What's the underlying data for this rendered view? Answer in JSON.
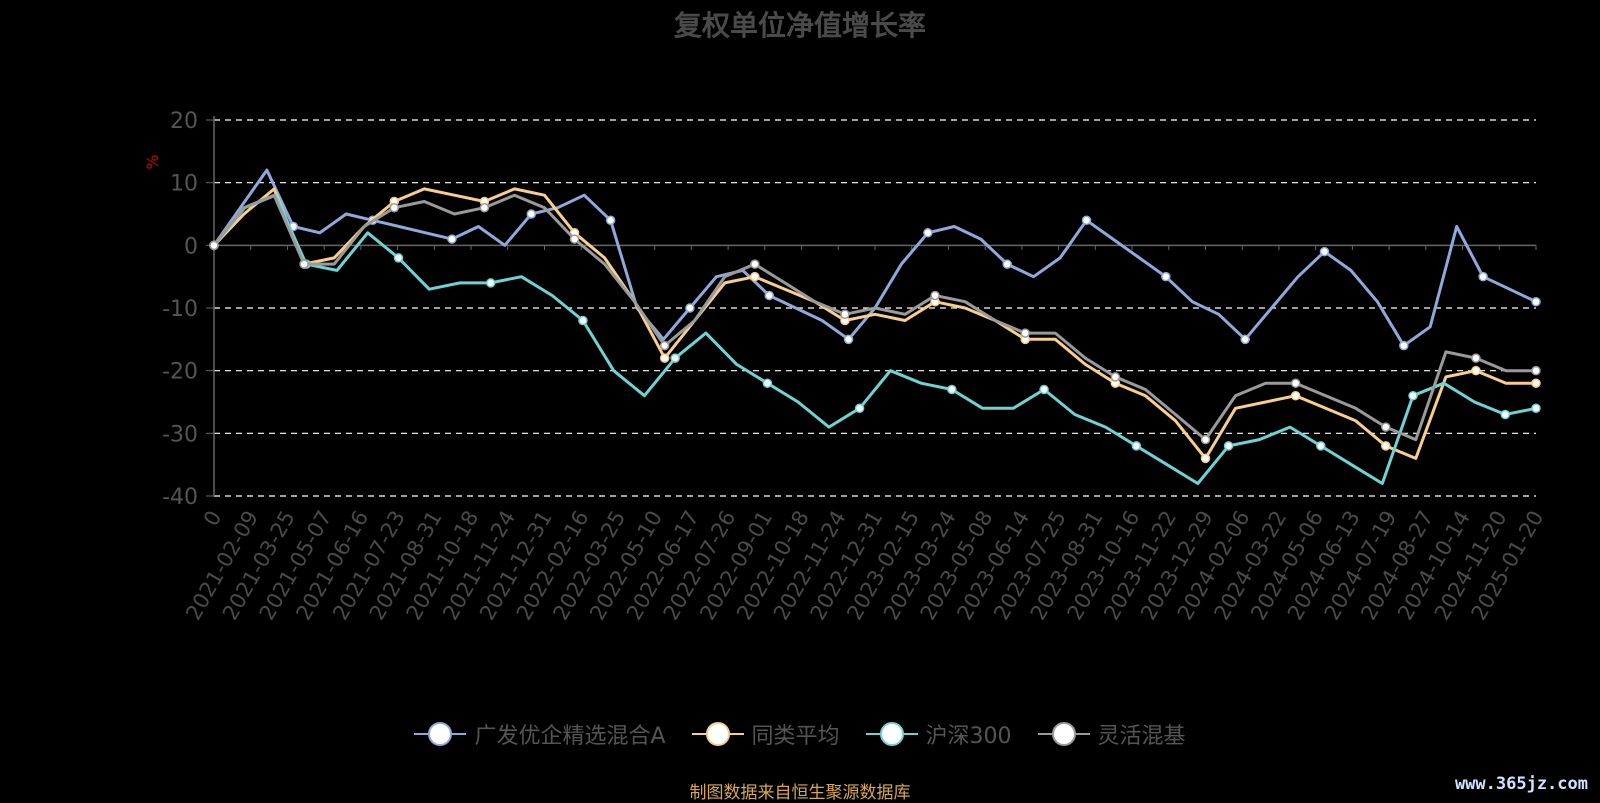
{
  "title": "复权单位净值增长率",
  "footer": "制图数据来自恒生聚源数据库",
  "watermark": "www.365jz.com",
  "chart_data": {
    "type": "line",
    "title": "复权单位净值增长率",
    "ylabel": "%",
    "ylim": [
      -40,
      20
    ],
    "yticks": [
      20,
      10,
      0,
      -10,
      -20,
      -30,
      -40
    ],
    "grid": true,
    "legend_position": "bottom-center",
    "x_tick_labels": [
      "0",
      "2021-02-09",
      "2021-03-25",
      "2021-05-07",
      "2021-06-16",
      "2021-07-23",
      "2021-08-31",
      "2021-10-18",
      "2021-11-24",
      "2021-12-31",
      "2022-02-16",
      "2022-03-25",
      "2022-05-10",
      "2022-06-17",
      "2022-07-26",
      "2022-09-01",
      "2022-10-18",
      "2022-11-24",
      "2022-12-31",
      "2023-02-15",
      "2023-03-24",
      "2023-05-08",
      "2023-06-14",
      "2023-07-25",
      "2023-08-31",
      "2023-10-16",
      "2023-11-22",
      "2023-12-29",
      "2024-02-06",
      "2024-03-22",
      "2024-05-06",
      "2024-06-13",
      "2024-07-19",
      "2024-08-27",
      "2024-10-14",
      "2024-11-20",
      "2025-01-20"
    ],
    "series": [
      {
        "name": "广发优企精选混合A",
        "color": "#8fa9dc",
        "values": [
          0,
          6,
          12,
          3,
          2,
          5,
          4,
          3,
          2,
          1,
          3,
          0,
          5,
          6,
          8,
          4,
          -10,
          -15,
          -10,
          -5,
          -4,
          -8,
          -10,
          -12,
          -15,
          -10,
          -3,
          2,
          3,
          1,
          -3,
          -5,
          -2,
          4,
          1,
          -2,
          -5,
          -9,
          -11,
          -15,
          -10,
          -5,
          -1,
          -4,
          -9,
          -16,
          -13,
          3,
          -5,
          -7,
          -9
        ]
      },
      {
        "name": "同类平均",
        "color": "#f9cd8c",
        "values": [
          0,
          5,
          9,
          -3,
          -2,
          3,
          7,
          9,
          8,
          7,
          9,
          8,
          2,
          -2,
          -9,
          -18,
          -12,
          -6,
          -5,
          -7,
          -9,
          -12,
          -11,
          -12,
          -9,
          -10,
          -12,
          -15,
          -15,
          -19,
          -22,
          -24,
          -28,
          -34,
          -26,
          -25,
          -24,
          -26,
          -28,
          -32,
          -34,
          -21,
          -20,
          -22,
          -22
        ]
      },
      {
        "name": "沪深300",
        "color": "#6ed3d3",
        "values": [
          0,
          6,
          8,
          -3,
          -4,
          2,
          -2,
          -7,
          -6,
          -6,
          -5,
          -8,
          -12,
          -20,
          -24,
          -18,
          -14,
          -19,
          -22,
          -25,
          -29,
          -26,
          -20,
          -22,
          -23,
          -26,
          -26,
          -23,
          -27,
          -29,
          -32,
          -35,
          -38,
          -32,
          -31,
          -29,
          -32,
          -35,
          -38,
          -24,
          -22,
          -25,
          -27,
          -26
        ]
      },
      {
        "name": "灵活混基",
        "color": "#9a9a9a",
        "values": [
          0,
          6,
          8,
          -3,
          -3,
          3,
          6,
          7,
          5,
          6,
          8,
          6,
          1,
          -3,
          -9,
          -16,
          -12,
          -5,
          -3,
          -6,
          -9,
          -11,
          -10,
          -11,
          -8,
          -9,
          -12,
          -14,
          -14,
          -18,
          -21,
          -23,
          -27,
          -31,
          -24,
          -22,
          -22,
          -24,
          -26,
          -29,
          -31,
          -17,
          -18,
          -20,
          -20
        ]
      }
    ]
  }
}
